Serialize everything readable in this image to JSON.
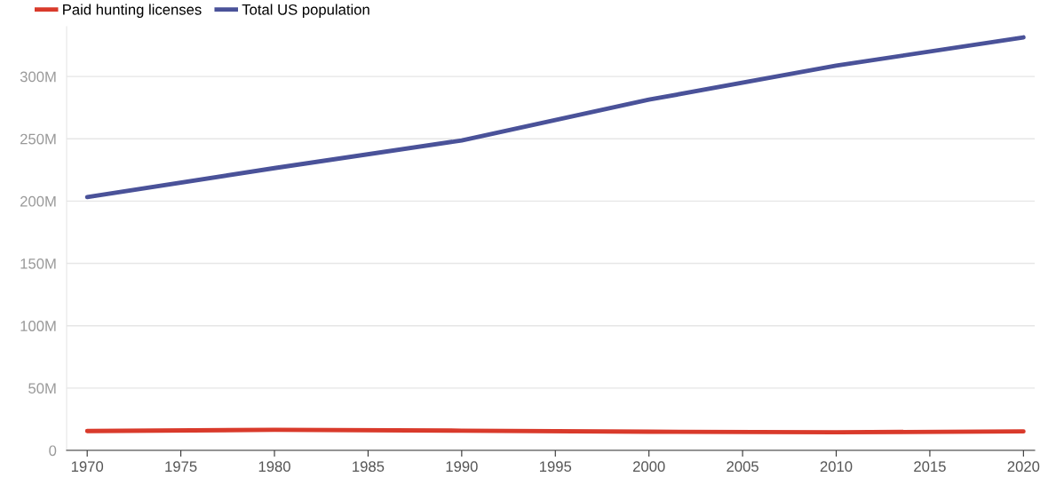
{
  "chart_data": {
    "type": "line",
    "x": [
      1970,
      1980,
      1990,
      2000,
      2010,
      2020
    ],
    "series": [
      {
        "name": "Paid hunting licenses",
        "color": "#d93a2b",
        "values": [
          15.5,
          16.5,
          15.8,
          15.0,
          14.5,
          15.2
        ]
      },
      {
        "name": "Total US population",
        "color": "#4a5299",
        "values": [
          203.2,
          226.5,
          248.7,
          281.4,
          308.7,
          331.4
        ]
      }
    ],
    "xlim": [
      1968.9,
      2020.6
    ],
    "xticks": [
      1970,
      1975,
      1980,
      1985,
      1990,
      1995,
      2000,
      2005,
      2010,
      2015,
      2020
    ],
    "ylim": [
      0,
      340
    ],
    "yticks": [
      {
        "value": 0,
        "label": "0"
      },
      {
        "value": 50,
        "label": "50M"
      },
      {
        "value": 100,
        "label": "100M"
      },
      {
        "value": 150,
        "label": "150M"
      },
      {
        "value": 200,
        "label": "200M"
      },
      {
        "value": 250,
        "label": "250M"
      },
      {
        "value": 300,
        "label": "300M"
      }
    ],
    "grid": "y",
    "legend": "top left",
    "marker": "none",
    "line_style": "solid"
  }
}
